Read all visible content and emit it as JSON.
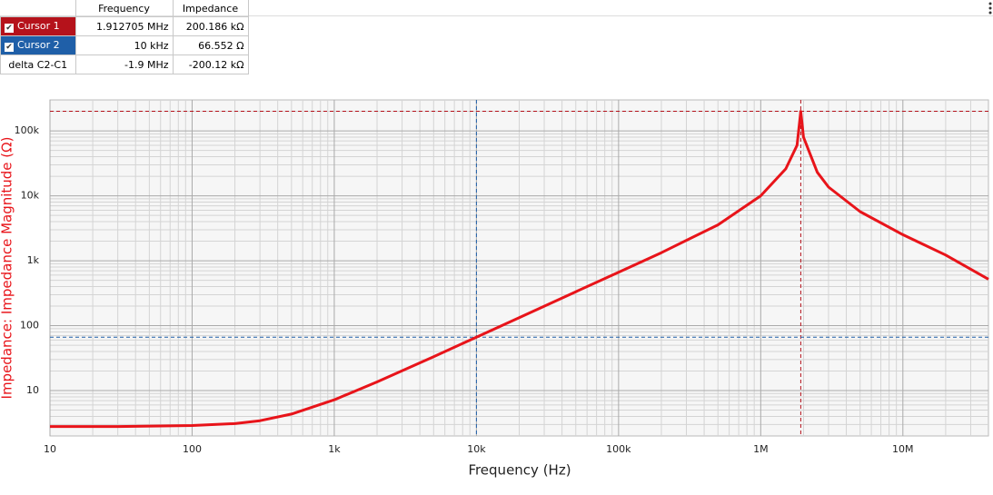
{
  "cursor_table": {
    "headers": [
      "Frequency",
      "Impedance"
    ],
    "rows": [
      {
        "name": "Cursor 1",
        "color": "#b5121b",
        "frequency": {
          "value": 1912705,
          "label": "1.912705 MHz"
        },
        "impedance": {
          "value": 200186,
          "label": "200.186 kΩ"
        }
      },
      {
        "name": "Cursor 2",
        "color": "#1f5fa8",
        "frequency": {
          "value": 10000,
          "label": "10 kHz"
        },
        "impedance": {
          "value": 66.552,
          "label": "66.552 Ω"
        }
      },
      {
        "name": "delta C2-C1",
        "frequency": {
          "label": "-1.9 MHz"
        },
        "impedance": {
          "label": "-200.12 kΩ"
        }
      }
    ]
  },
  "chart_data": {
    "type": "line",
    "x_label": "Frequency (Hz)",
    "y_label": "Impedance: Impedance Magnitude (Ω)",
    "x": [
      10,
      30,
      60,
      100,
      200,
      300,
      500,
      1000,
      2000,
      5000,
      10000,
      20000,
      50000,
      100000,
      200000,
      500000,
      1000000,
      1500000,
      1800000,
      1912705,
      2000000,
      2500000,
      3000000,
      5000000,
      10000000,
      20000000,
      40000000
    ],
    "values": [
      2.8,
      2.8,
      2.85,
      2.9,
      3.1,
      3.44,
      4.35,
      7.2,
      13.6,
      33.3,
      66.552,
      133,
      333,
      666,
      1332,
      3570,
      10000,
      26000,
      60000,
      200186,
      80000,
      23000,
      13600,
      5700,
      2520,
      1225,
      520
    ],
    "color": "#e8141a",
    "x_scale": "log",
    "y_scale": "log",
    "xlim": [
      10,
      40000000
    ],
    "ylim": [
      2,
      300000
    ],
    "xticks": [
      10,
      100,
      {
        "value": 1000,
        "label": "1k"
      },
      {
        "value": 10000,
        "label": "10k"
      },
      {
        "value": 100000,
        "label": "100k"
      },
      {
        "value": 1000000,
        "label": "1M"
      },
      {
        "value": 10000000,
        "label": "10M"
      }
    ],
    "yticks": [
      10,
      100,
      {
        "value": 1000,
        "label": "1k"
      },
      {
        "value": 10000,
        "label": "10k"
      },
      {
        "value": 100000,
        "label": "100k"
      }
    ],
    "grid": true
  }
}
